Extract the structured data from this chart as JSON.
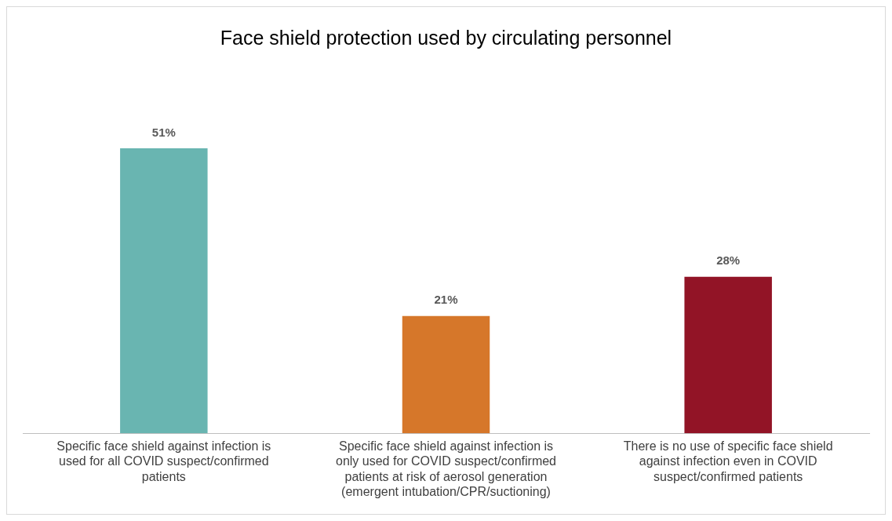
{
  "chart_data": {
    "type": "bar",
    "title": "Face shield protection used by circulating personnel",
    "categories": [
      "Specific face shield against infection is used for all COVID suspect/confirmed patients",
      "Specific face shield against infection is only used for COVID suspect/confirmed patients at risk of aerosol generation (emergent intubation/CPR/suctioning)",
      "There is no use of specific face shield against infection even in COVID suspect/confirmed patients"
    ],
    "values": [
      51,
      21,
      28
    ],
    "colors": [
      "#69b5b1",
      "#d6772a",
      "#921426"
    ],
    "value_labels": [
      "51%",
      "21%",
      "28%"
    ],
    "legend": false
  }
}
